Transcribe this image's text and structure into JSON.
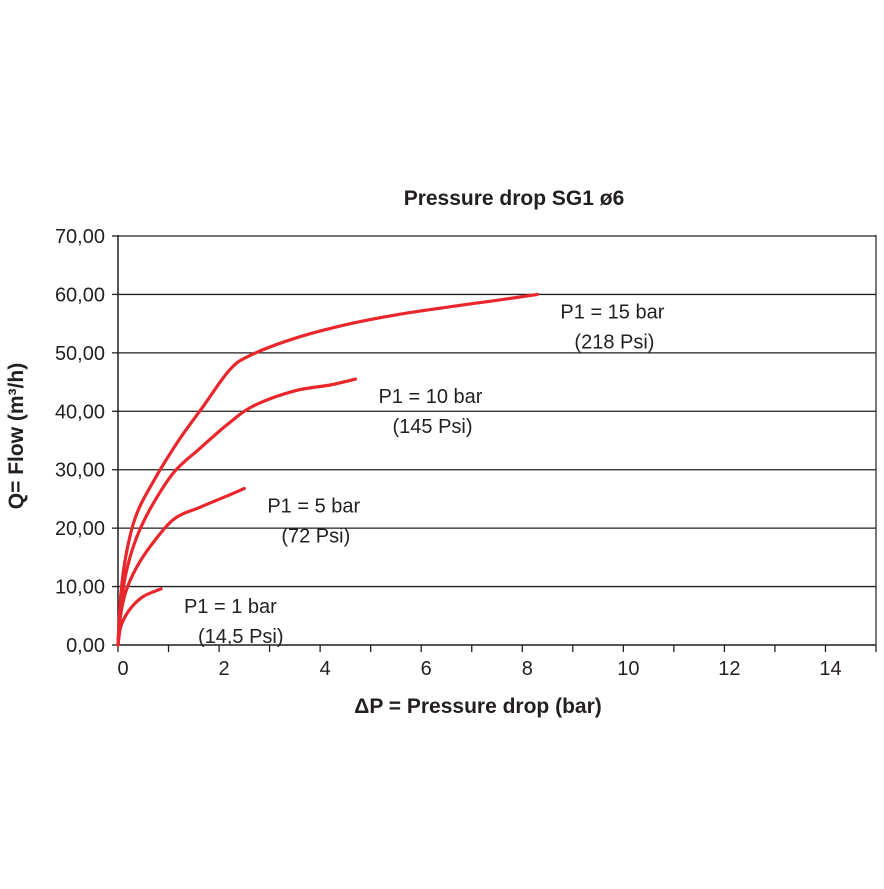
{
  "chart_data": {
    "type": "line",
    "title": "Pressure drop SG1 ø6",
    "xlabel": "ΔP = Pressure drop (bar)",
    "ylabel": "Q= Flow (m³/h)",
    "xlim": [
      0,
      15
    ],
    "ylim": [
      0,
      70
    ],
    "x_ticks": [
      "0",
      "2",
      "4",
      "6",
      "8",
      "10",
      "12",
      "14"
    ],
    "x_tick_values": [
      0,
      2,
      4,
      6,
      8,
      10,
      12,
      14
    ],
    "y_ticks": [
      "0,00",
      "10,00",
      "20,00",
      "30,00",
      "40,00",
      "50,00",
      "60,00",
      "70,00"
    ],
    "y_tick_values": [
      0,
      10,
      20,
      30,
      40,
      50,
      60,
      70
    ],
    "grid": "horizontal",
    "line_color": "#e8262b",
    "series": [
      {
        "label_line1": "P1 = 1 bar",
        "label_line2": "(14,5 Psi)",
        "points": [
          [
            0,
            0
          ],
          [
            0.05,
            3
          ],
          [
            0.15,
            5
          ],
          [
            0.3,
            6.8
          ],
          [
            0.5,
            8.3
          ],
          [
            0.7,
            9.1
          ],
          [
            0.85,
            9.6
          ]
        ]
      },
      {
        "label_line1": "P1 = 5 bar",
        "label_line2": "(72 Psi)",
        "points": [
          [
            0,
            0
          ],
          [
            0.05,
            5
          ],
          [
            0.15,
            9
          ],
          [
            0.35,
            13
          ],
          [
            0.65,
            17
          ],
          [
            1.1,
            21.5
          ],
          [
            1.6,
            23.5
          ],
          [
            2.1,
            25.3
          ],
          [
            2.5,
            26.8
          ]
        ]
      },
      {
        "label_line1": "P1 = 10 bar",
        "label_line2": "(145 Psi)",
        "points": [
          [
            0,
            0
          ],
          [
            0.05,
            6
          ],
          [
            0.15,
            12
          ],
          [
            0.35,
            18
          ],
          [
            0.65,
            23.5
          ],
          [
            1.1,
            29.5
          ],
          [
            1.6,
            33.5
          ],
          [
            2.2,
            38
          ],
          [
            2.7,
            41
          ],
          [
            3.5,
            43.5
          ],
          [
            4.2,
            44.5
          ],
          [
            4.7,
            45.5
          ]
        ]
      },
      {
        "label_line1": "P1 = 15 bar",
        "label_line2": "(218 Psi)",
        "points": [
          [
            0,
            0
          ],
          [
            0.05,
            8
          ],
          [
            0.15,
            15
          ],
          [
            0.35,
            22
          ],
          [
            0.7,
            28
          ],
          [
            1.2,
            35
          ],
          [
            1.7,
            41
          ],
          [
            2.2,
            47
          ],
          [
            2.6,
            49.5
          ],
          [
            3.5,
            52.5
          ],
          [
            4.5,
            54.8
          ],
          [
            5.5,
            56.5
          ],
          [
            6.5,
            57.8
          ],
          [
            7.5,
            59
          ],
          [
            8.3,
            60
          ]
        ]
      }
    ]
  }
}
